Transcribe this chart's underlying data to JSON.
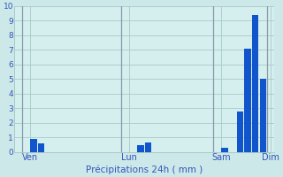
{
  "bar_values": [
    0,
    0,
    0.9,
    0.6,
    0,
    0,
    0,
    0,
    0,
    0,
    0,
    0,
    0,
    0,
    0,
    0,
    0.5,
    0.65,
    0,
    0,
    0,
    0,
    0,
    0,
    0,
    0,
    0,
    0.3,
    0,
    2.8,
    7.1,
    9.4,
    5.0,
    0
  ],
  "bar_color": "#1155cc",
  "background_color": "#cce8e8",
  "plot_background": "#d5eeee",
  "grid_color": "#aac8c8",
  "day_line_color": "#8899aa",
  "xlabel": "Précipitations 24h ( mm )",
  "xlabel_color": "#3355bb",
  "tick_color": "#3355bb",
  "ylim": [
    0,
    10
  ],
  "yticks": [
    0,
    1,
    2,
    3,
    4,
    5,
    6,
    7,
    8,
    9,
    10
  ],
  "day_positions": [
    1.5,
    14.5,
    26.5,
    33.0
  ],
  "day_labels": [
    "Ven",
    "Lun",
    "Sam",
    "Dim"
  ],
  "day_vlines": [
    0.5,
    13.5,
    25.5,
    32.5
  ],
  "n_bars": 34
}
